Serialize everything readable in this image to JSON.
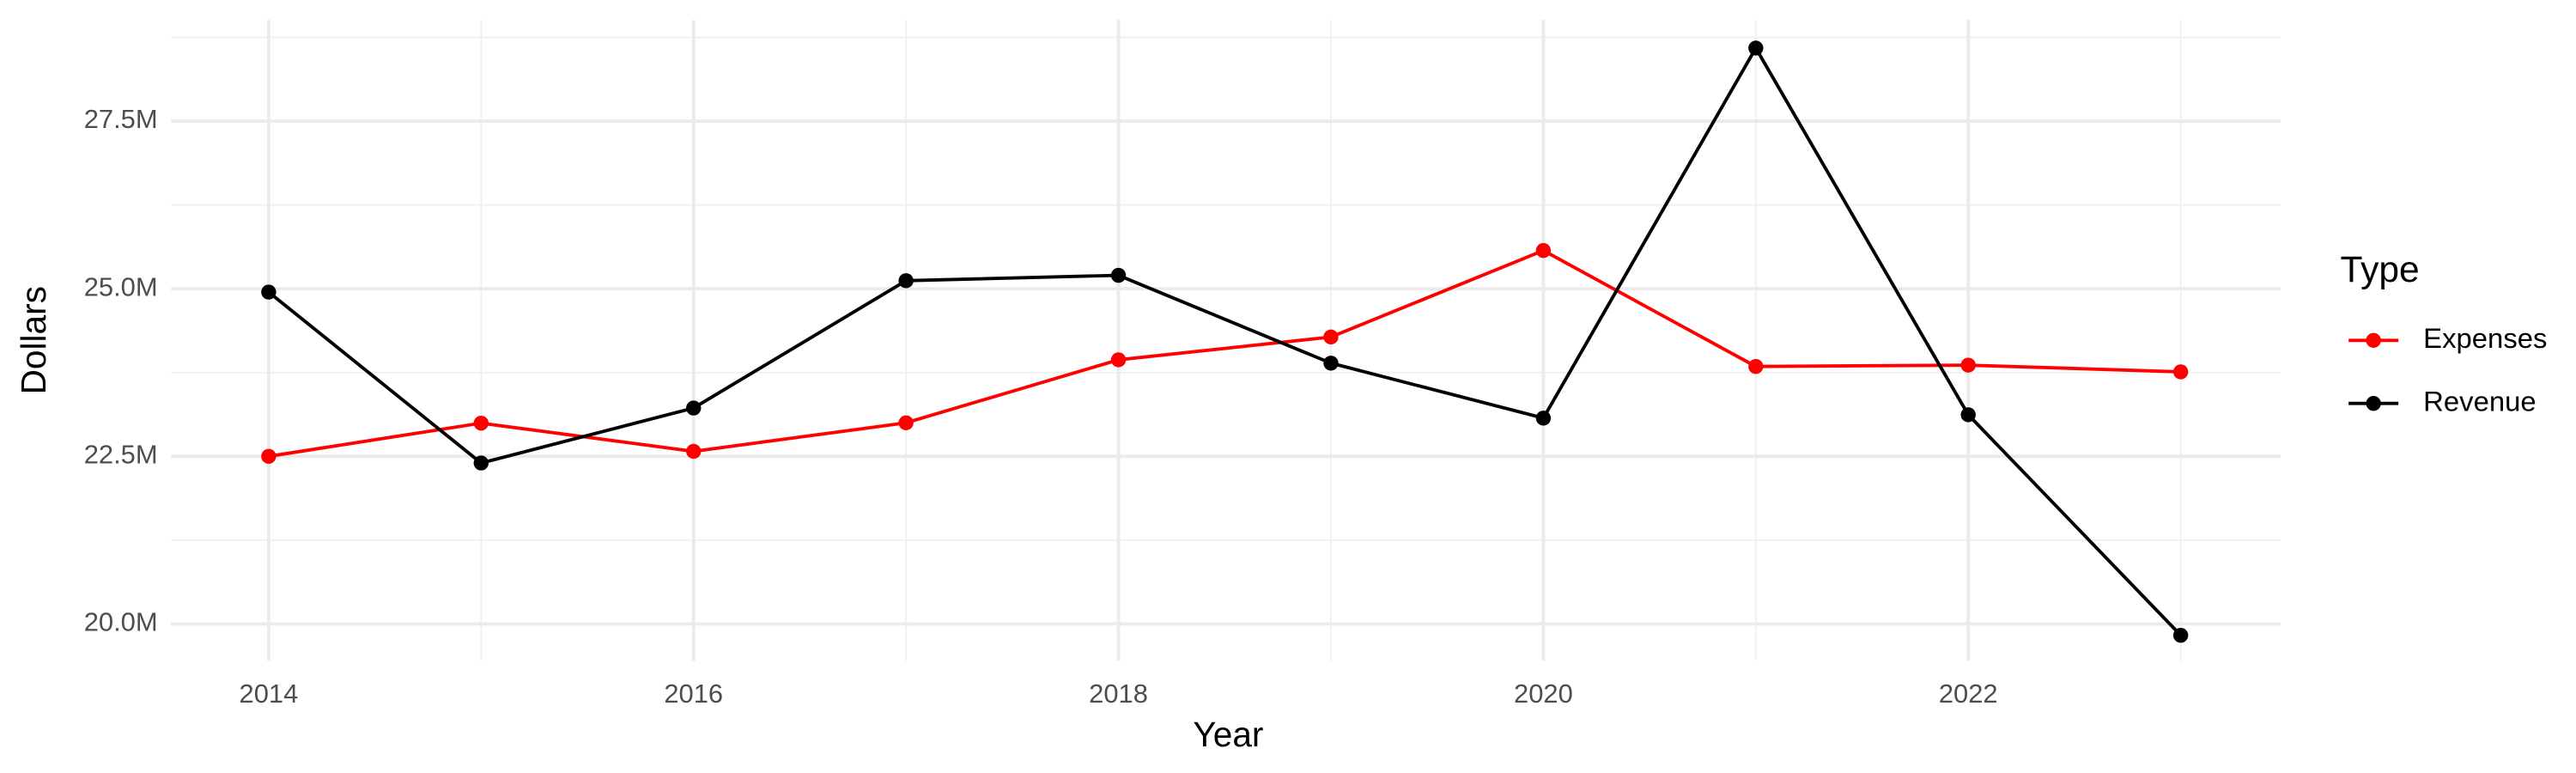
{
  "chart_data": {
    "type": "line",
    "x_label": "Year",
    "y_label": "Dollars",
    "x": [
      2014,
      2015,
      2016,
      2017,
      2018,
      2019,
      2020,
      2021,
      2022,
      2023
    ],
    "series": [
      {
        "name": "Expenses",
        "color": "#ff0000",
        "values": [
          22500000,
          22995000,
          22574000,
          23000000,
          23940000,
          24280000,
          25570000,
          23840000,
          23860000,
          23760000
        ]
      },
      {
        "name": "Revenue",
        "color": "#000000",
        "values": [
          24950000,
          22400000,
          23220000,
          25120000,
          25200000,
          23890000,
          23070000,
          28590000,
          23120000,
          19830000
        ]
      }
    ],
    "xlim": [
      2013.54,
      2023.47
    ],
    "xticks": [
      2014,
      2016,
      2018,
      2020,
      2022
    ],
    "ylim": [
      19450000,
      29010000
    ],
    "yticks": [
      {
        "value": 20000000,
        "label": "20.0M"
      },
      {
        "value": 22500000,
        "label": "22.5M"
      },
      {
        "value": 25000000,
        "label": "25.0M"
      },
      {
        "value": 27500000,
        "label": "27.5M"
      }
    ],
    "grid": true,
    "legend_title": "Type",
    "legend_position": "right"
  }
}
